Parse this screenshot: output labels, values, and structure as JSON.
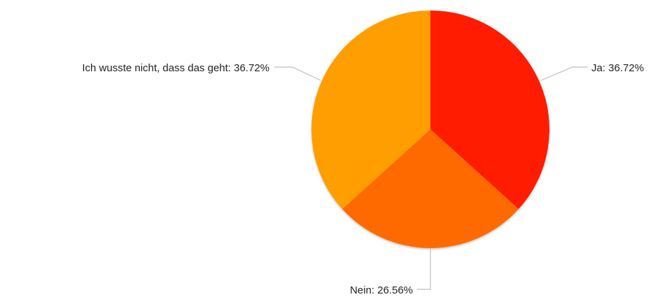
{
  "chart_data": {
    "type": "pie",
    "slices": [
      {
        "label": "Ja",
        "value": 36.72,
        "display": "Ja: 36.72%",
        "color": "#ff1a00"
      },
      {
        "label": "Nein",
        "value": 26.56,
        "display": "Nein: 26.56%",
        "color": "#ff6a00"
      },
      {
        "label": "Ich wusste nicht, dass das geht",
        "value": 36.72,
        "display": "Ich wusste nicht, dass das geht: 36.72%",
        "color": "#ff9e00"
      }
    ],
    "start_angle": "12 o'clock",
    "direction": "clockwise",
    "labels": "outside, with leader lines"
  }
}
